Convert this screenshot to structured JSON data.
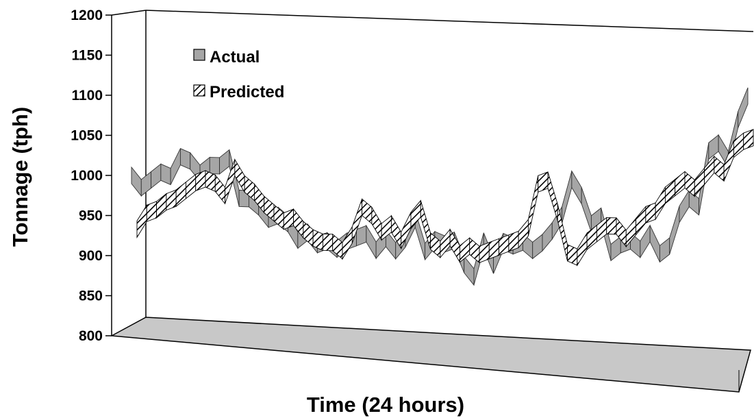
{
  "chart_data": {
    "type": "line",
    "style": "3d-ribbon",
    "title": "",
    "xlabel": "Time (24 hours)",
    "ylabel": "Tonnage (tph)",
    "ylim": [
      800,
      1200
    ],
    "yticks": [
      800,
      850,
      900,
      950,
      1000,
      1050,
      1100,
      1150,
      1200
    ],
    "grid": false,
    "legend_position": "top-left",
    "colors": {
      "actual": "#a6a6a6",
      "predicted_fill": "#ffffff",
      "predicted_hatch": "#000000",
      "floor": "#c8c8c8"
    },
    "series": [
      {
        "name": "Actual",
        "values": [
          1000,
          985,
          995,
          1005,
          1000,
          1025,
          1020,
          1005,
          1015,
          1015,
          1025,
          975,
          975,
          965,
          950,
          955,
          945,
          925,
          935,
          920,
          925,
          915,
          925,
          930,
          935,
          915,
          930,
          915,
          930,
          955,
          915,
          930,
          925,
          930,
          900,
          885,
          930,
          900,
          930,
          925,
          930,
          920,
          930,
          945,
          965,
          1010,
          990,
          955,
          965,
          920,
          930,
          935,
          925,
          945,
          920,
          930,
          970,
          990,
          980,
          1050,
          1060,
          1040,
          1090,
          1120
        ]
      },
      {
        "name": "Predicted",
        "values": [
          940,
          960,
          965,
          975,
          980,
          990,
          1000,
          1005,
          1000,
          985,
          1020,
          1000,
          990,
          975,
          965,
          955,
          960,
          945,
          935,
          930,
          930,
          920,
          940,
          975,
          965,
          945,
          955,
          935,
          960,
          975,
          935,
          925,
          940,
          920,
          930,
          920,
          925,
          930,
          935,
          940,
          955,
          1010,
          1015,
          975,
          925,
          920,
          940,
          950,
          960,
          960,
          945,
          960,
          975,
          980,
          1000,
          1010,
          1020,
          1010,
          1025,
          1040,
          1030,
          1060,
          1070,
          1075
        ]
      }
    ]
  }
}
